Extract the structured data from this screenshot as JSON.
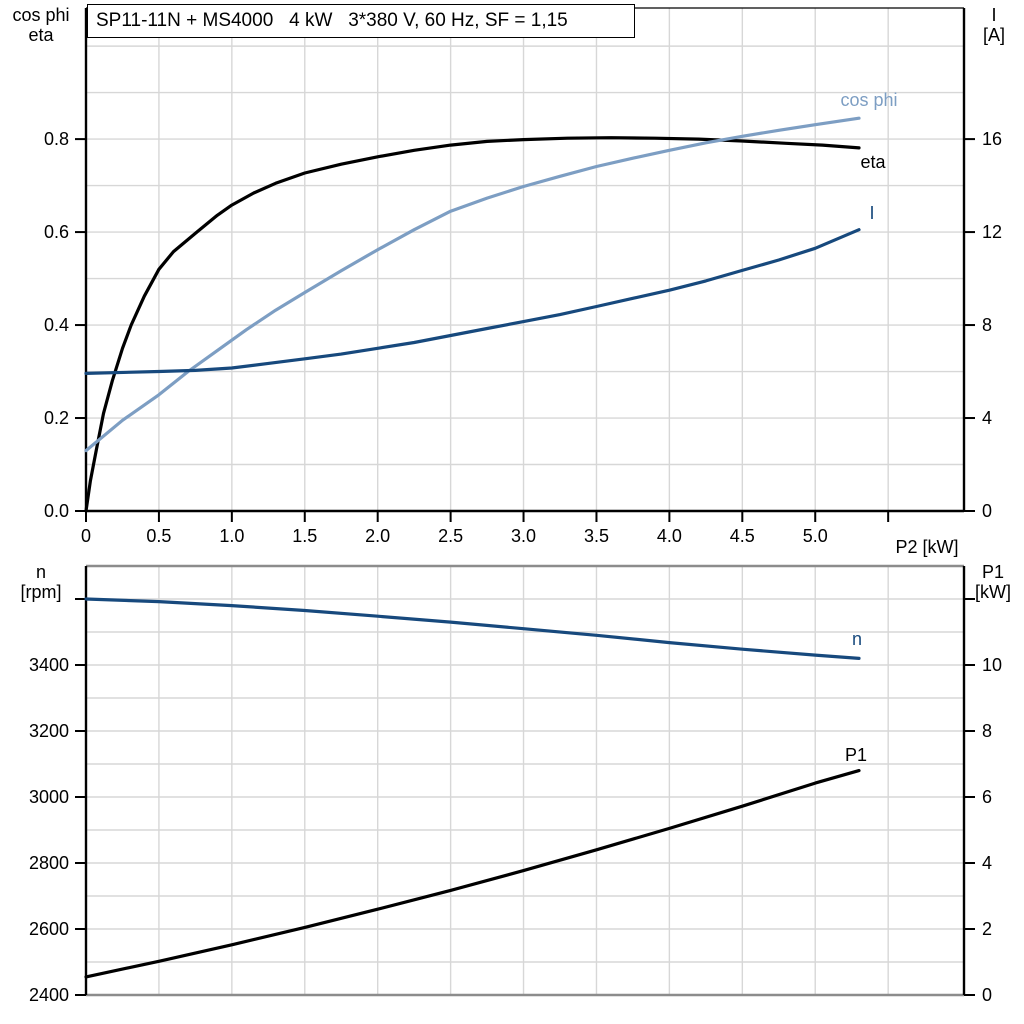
{
  "title": "SP11-11N + MS4000   4 kW   3*380 V, 60 Hz, SF = 1,15",
  "colors": {
    "grid": "#d7d7d7",
    "axis": "#000000",
    "frame_gray": "#8c8c8c",
    "eta_black": "#000000",
    "cos_phi_blue": "#7d9ec3",
    "current_navy": "#17497d"
  },
  "chart_data": [
    {
      "type": "line",
      "title": "SP11-11N + MS4000   4 kW   3*380 V, 60 Hz, SF = 1,15",
      "xlabel": "P2 [kW]",
      "ylabel_left_lines": [
        "cos phi",
        "eta"
      ],
      "ylabel_right_lines": [
        "I",
        "[A]"
      ],
      "x_range": [
        0,
        6.02
      ],
      "y_left_range": [
        0,
        1.082
      ],
      "y_right_range": [
        0,
        21.64
      ],
      "grid": true,
      "grid_x_step": 0.5,
      "grid_y_step_left": 0.1,
      "x_ticks": [
        0,
        0.5,
        1,
        1.5,
        2,
        2.5,
        3,
        3.5,
        4,
        4.5,
        5,
        5.5
      ],
      "x_tick_labels": [
        "0",
        "0.5",
        "1.0",
        "1.5",
        "2.0",
        "2.5",
        "3.0",
        "3.5",
        "4.0",
        "4.5",
        "5.0",
        ""
      ],
      "y_left_ticks": [
        0,
        0.2,
        0.4,
        0.6,
        0.8
      ],
      "y_left_tick_labels": [
        "0.0",
        "0.2",
        "0.4",
        "0.6",
        "0.8"
      ],
      "y_right_ticks": [
        0,
        4,
        8,
        12,
        16
      ],
      "y_right_tick_labels": [
        "0",
        "4",
        "8",
        "12",
        "16"
      ],
      "series": [
        {
          "name": "eta",
          "axis": "left",
          "color": "#000000",
          "points": [
            [
              0,
              0
            ],
            [
              0.03,
              0.065
            ],
            [
              0.07,
              0.13
            ],
            [
              0.12,
              0.21
            ],
            [
              0.18,
              0.28
            ],
            [
              0.25,
              0.35
            ],
            [
              0.31,
              0.4
            ],
            [
              0.4,
              0.462
            ],
            [
              0.5,
              0.52
            ],
            [
              0.6,
              0.558
            ],
            [
              0.76,
              0.6
            ],
            [
              0.9,
              0.636
            ],
            [
              1.0,
              0.658
            ],
            [
              1.15,
              0.684
            ],
            [
              1.3,
              0.705
            ],
            [
              1.5,
              0.727
            ],
            [
              1.75,
              0.746
            ],
            [
              2.0,
              0.762
            ],
            [
              2.25,
              0.776
            ],
            [
              2.5,
              0.787
            ],
            [
              2.75,
              0.795
            ],
            [
              3.0,
              0.799
            ],
            [
              3.3,
              0.802
            ],
            [
              3.6,
              0.803
            ],
            [
              3.9,
              0.802
            ],
            [
              4.2,
              0.8
            ],
            [
              4.5,
              0.796
            ],
            [
              4.8,
              0.791
            ],
            [
              5.05,
              0.787
            ],
            [
              5.3,
              0.781
            ]
          ]
        },
        {
          "name": "cos phi",
          "axis": "left",
          "color": "#7d9ec3",
          "points": [
            [
              0,
              0.13
            ],
            [
              0.25,
              0.195
            ],
            [
              0.5,
              0.25
            ],
            [
              0.7,
              0.3
            ],
            [
              0.9,
              0.345
            ],
            [
              1.1,
              0.39
            ],
            [
              1.3,
              0.432
            ],
            [
              1.5,
              0.47
            ],
            [
              1.75,
              0.517
            ],
            [
              2.0,
              0.562
            ],
            [
              2.25,
              0.605
            ],
            [
              2.5,
              0.645
            ],
            [
              2.75,
              0.673
            ],
            [
              3.0,
              0.698
            ],
            [
              3.25,
              0.72
            ],
            [
              3.5,
              0.741
            ],
            [
              3.75,
              0.759
            ],
            [
              4.0,
              0.776
            ],
            [
              4.25,
              0.792
            ],
            [
              4.5,
              0.806
            ],
            [
              4.75,
              0.819
            ],
            [
              5.0,
              0.831
            ],
            [
              5.15,
              0.838
            ],
            [
              5.3,
              0.845
            ]
          ]
        },
        {
          "name": "I",
          "axis": "right",
          "color": "#17497d",
          "points": [
            [
              0,
              5.92
            ],
            [
              0.5,
              6.0
            ],
            [
              0.75,
              6.05
            ],
            [
              1.0,
              6.15
            ],
            [
              1.25,
              6.35
            ],
            [
              1.5,
              6.55
            ],
            [
              1.75,
              6.75
            ],
            [
              2.0,
              7.0
            ],
            [
              2.25,
              7.25
            ],
            [
              2.5,
              7.55
            ],
            [
              2.75,
              7.85
            ],
            [
              3.0,
              8.15
            ],
            [
              3.25,
              8.45
            ],
            [
              3.5,
              8.8
            ],
            [
              3.75,
              9.15
            ],
            [
              4.0,
              9.5
            ],
            [
              4.25,
              9.9
            ],
            [
              4.5,
              10.35
            ],
            [
              4.75,
              10.8
            ],
            [
              5.0,
              11.3
            ],
            [
              5.3,
              12.1
            ]
          ]
        }
      ]
    },
    {
      "type": "line",
      "xlabel": "",
      "ylabel_left_lines": [
        "n",
        "[rpm]"
      ],
      "ylabel_right_lines": [
        "P1",
        "[kW]"
      ],
      "x_range": [
        0,
        6.02
      ],
      "y_left_range": [
        2400,
        3700
      ],
      "y_right_range": [
        0,
        13
      ],
      "grid": true,
      "grid_x_step": 0.5,
      "grid_y_step_left": 100,
      "x_ticks": [],
      "x_tick_labels": [],
      "y_left_ticks": [
        2400,
        2600,
        2800,
        3000,
        3200,
        3400,
        3600
      ],
      "y_left_tick_labels": [
        "2400",
        "2600",
        "2800",
        "3000",
        "3200",
        "3400",
        ""
      ],
      "y_right_ticks": [
        0,
        2,
        4,
        6,
        8,
        10,
        12
      ],
      "y_right_tick_labels": [
        "0",
        "2",
        "4",
        "6",
        "8",
        "10",
        ""
      ],
      "series": [
        {
          "name": "n",
          "axis": "left",
          "color": "#17497d",
          "points": [
            [
              0,
              3600
            ],
            [
              0.5,
              3592
            ],
            [
              1.0,
              3580
            ],
            [
              1.5,
              3565
            ],
            [
              2.0,
              3548
            ],
            [
              2.5,
              3530
            ],
            [
              3.0,
              3510
            ],
            [
              3.5,
              3490
            ],
            [
              4.0,
              3468
            ],
            [
              4.5,
              3448
            ],
            [
              5.0,
              3430
            ],
            [
              5.3,
              3420
            ]
          ]
        },
        {
          "name": "P1",
          "axis": "right",
          "color": "#000000",
          "points": [
            [
              0,
              0.55
            ],
            [
              0.5,
              1.02
            ],
            [
              1.0,
              1.52
            ],
            [
              1.5,
              2.05
            ],
            [
              2.0,
              2.6
            ],
            [
              2.5,
              3.17
            ],
            [
              3.0,
              3.77
            ],
            [
              3.5,
              4.4
            ],
            [
              4.0,
              5.05
            ],
            [
              4.5,
              5.72
            ],
            [
              5.0,
              6.42
            ],
            [
              5.3,
              6.8
            ]
          ]
        }
      ]
    }
  ]
}
